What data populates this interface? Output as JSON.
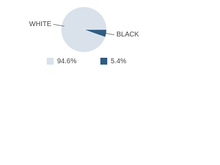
{
  "chart_data": {
    "type": "pie",
    "categories": [
      "WHITE",
      "BLACK"
    ],
    "values": [
      94.6,
      5.4
    ],
    "value_labels": [
      "94.6%",
      "5.4%"
    ],
    "colors": [
      "#d9e1eb",
      "#2f5c82"
    ]
  }
}
